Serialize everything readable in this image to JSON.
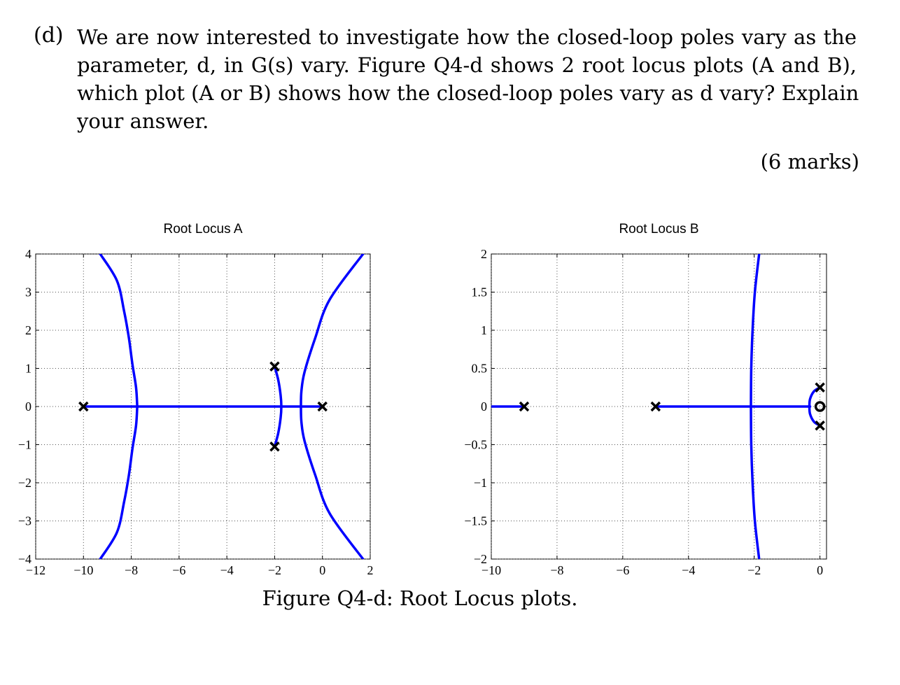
{
  "question": {
    "label": "(d)",
    "lines": [
      "We are now interested to investigate how the closed-loop poles vary as the",
      "parameter, d, in G(s) vary. Figure Q4-d shows 2 root locus plots (A and B),",
      "which plot (A or B) shows how the closed-loop poles vary as d vary? Explain",
      "your answer."
    ],
    "marks": "(6 marks)"
  },
  "caption": "Figure Q4-d: Root Locus plots.",
  "colors": {
    "locus": "#0000ff",
    "marker": "#000000",
    "grid": "#555555"
  },
  "chart_data": [
    {
      "type": "line",
      "title": "Root Locus A",
      "xlabel": "",
      "ylabel": "",
      "xlim": [
        -12,
        2
      ],
      "ylim": [
        -4,
        4
      ],
      "xticks": [
        -12,
        -10,
        -8,
        -6,
        -4,
        -2,
        0,
        2
      ],
      "yticks": [
        -4,
        -3,
        -2,
        -1,
        0,
        1,
        2,
        3,
        4
      ],
      "grid": true,
      "poles": [
        [
          -10,
          0
        ],
        [
          -2,
          1.05
        ],
        [
          -2,
          -1.05
        ],
        [
          0,
          0
        ]
      ],
      "zeros": [],
      "series": [
        {
          "values": [
            [
              -10,
              0
            ],
            [
              0,
              0
            ]
          ]
        },
        {
          "values": [
            [
              -7.75,
              0
            ],
            [
              -7.8,
              0.5
            ],
            [
              -7.95,
              1.1
            ],
            [
              -8.1,
              1.8
            ],
            [
              -8.3,
              2.5
            ],
            [
              -8.6,
              3.3
            ],
            [
              -9.3,
              4
            ]
          ]
        },
        {
          "values": [
            [
              -7.75,
              0
            ],
            [
              -7.8,
              -0.5
            ],
            [
              -7.95,
              -1.1
            ],
            [
              -8.1,
              -1.8
            ],
            [
              -8.3,
              -2.5
            ],
            [
              -8.6,
              -3.3
            ],
            [
              -9.3,
              -4
            ]
          ]
        },
        {
          "values": [
            [
              -2,
              1.05
            ],
            [
              -1.85,
              0.7
            ],
            [
              -1.75,
              0.3
            ],
            [
              -1.72,
              0
            ],
            [
              -1.75,
              -0.3
            ],
            [
              -1.85,
              -0.7
            ],
            [
              -2,
              -1.05
            ]
          ]
        },
        {
          "values": [
            [
              -0.9,
              0
            ],
            [
              -0.88,
              0.4
            ],
            [
              -0.75,
              0.9
            ],
            [
              -0.3,
              1.8
            ],
            [
              0.3,
              2.8
            ],
            [
              1.7,
              4
            ]
          ]
        },
        {
          "values": [
            [
              -0.9,
              0
            ],
            [
              -0.88,
              -0.4
            ],
            [
              -0.75,
              -0.9
            ],
            [
              -0.3,
              -1.8
            ],
            [
              0.3,
              -2.8
            ],
            [
              1.7,
              -4
            ]
          ]
        }
      ]
    },
    {
      "type": "line",
      "title": "Root Locus B",
      "xlabel": "",
      "ylabel": "",
      "xlim": [
        -10,
        0.2
      ],
      "ylim": [
        -2,
        2
      ],
      "xticks": [
        -10,
        -8,
        -6,
        -4,
        -2,
        0
      ],
      "yticks": [
        -2,
        -1.5,
        -1,
        -0.5,
        0,
        0.5,
        1,
        1.5,
        2
      ],
      "ytick_labels": [
        "−2",
        "−1.5",
        "−1",
        "−0.5",
        "0",
        "0.5",
        "1",
        "1.5",
        "2"
      ],
      "grid": true,
      "poles": [
        [
          -9,
          0
        ],
        [
          -5,
          0
        ],
        [
          0,
          0.25
        ],
        [
          0,
          -0.25
        ]
      ],
      "zeros": [
        [
          0,
          0
        ]
      ],
      "series": [
        {
          "values": [
            [
              -10,
              0
            ],
            [
              -9,
              0
            ]
          ]
        },
        {
          "values": [
            [
              -5,
              0
            ],
            [
              -0.3,
              0
            ]
          ]
        },
        {
          "values": [
            [
              -2.1,
              0
            ],
            [
              -2.09,
              0.5
            ],
            [
              -2.05,
              1.0
            ],
            [
              -1.98,
              1.5
            ],
            [
              -1.85,
              2
            ]
          ]
        },
        {
          "values": [
            [
              -2.1,
              0
            ],
            [
              -2.09,
              -0.5
            ],
            [
              -2.05,
              -1.0
            ],
            [
              -1.98,
              -1.5
            ],
            [
              -1.85,
              -2
            ]
          ]
        },
        {
          "values": [
            [
              0,
              0.25
            ],
            [
              -0.18,
              0.2
            ],
            [
              -0.3,
              0.1
            ],
            [
              -0.32,
              0
            ],
            [
              -0.3,
              -0.1
            ],
            [
              -0.18,
              -0.2
            ],
            [
              0,
              -0.25
            ]
          ]
        }
      ]
    }
  ]
}
